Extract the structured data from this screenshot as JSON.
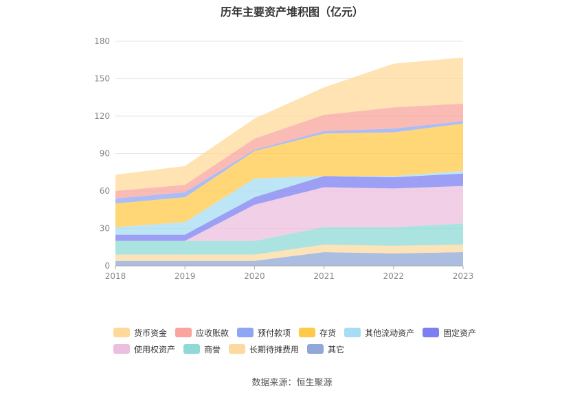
{
  "chart_data": {
    "type": "area",
    "stacked": true,
    "title": "历年主要资产堆积图（亿元）",
    "x": [
      "2018",
      "2019",
      "2020",
      "2021",
      "2022",
      "2023"
    ],
    "ylim": [
      0,
      180
    ],
    "yticks": [
      0,
      30,
      60,
      90,
      120,
      150,
      180
    ],
    "grid": true,
    "legend_position": "bottom",
    "series": [
      {
        "name": "其它",
        "color": "#8fa8d8",
        "values": [
          4,
          4,
          4,
          11,
          10,
          11
        ]
      },
      {
        "name": "长期待摊费用",
        "color": "#fcd9a0",
        "values": [
          5,
          5,
          5,
          6,
          6,
          6
        ]
      },
      {
        "name": "商誉",
        "color": "#8fd9d7",
        "values": [
          11,
          11,
          11,
          14,
          15,
          17
        ]
      },
      {
        "name": "使用权资产",
        "color": "#ebbfdf",
        "values": [
          0,
          0,
          29,
          32,
          31,
          30
        ]
      },
      {
        "name": "固定资产",
        "color": "#7b7ff0",
        "values": [
          5,
          5,
          6,
          9,
          9,
          10
        ]
      },
      {
        "name": "其他流动资产",
        "color": "#a6ddf3",
        "values": [
          6,
          10,
          15,
          0,
          1,
          2
        ]
      },
      {
        "name": "存货",
        "color": "#ffc94a",
        "values": [
          19,
          20,
          22,
          34,
          35,
          38
        ]
      },
      {
        "name": "预付款项",
        "color": "#8ea7f5",
        "values": [
          4,
          4,
          1,
          2,
          3,
          2
        ]
      },
      {
        "name": "应收账款",
        "color": "#f9a49c",
        "values": [
          6,
          6,
          9,
          13,
          17,
          14
        ]
      },
      {
        "name": "货币资金",
        "color": "#ffd99a",
        "values": [
          13,
          15,
          16,
          22,
          35,
          37
        ]
      }
    ],
    "legend_order": [
      "货币资金",
      "应收账款",
      "预付款项",
      "存货",
      "其他流动资产",
      "固定资产",
      "使用权资产",
      "商誉",
      "长期待摊费用",
      "其它"
    ]
  },
  "source": "数据来源：恒生聚源"
}
